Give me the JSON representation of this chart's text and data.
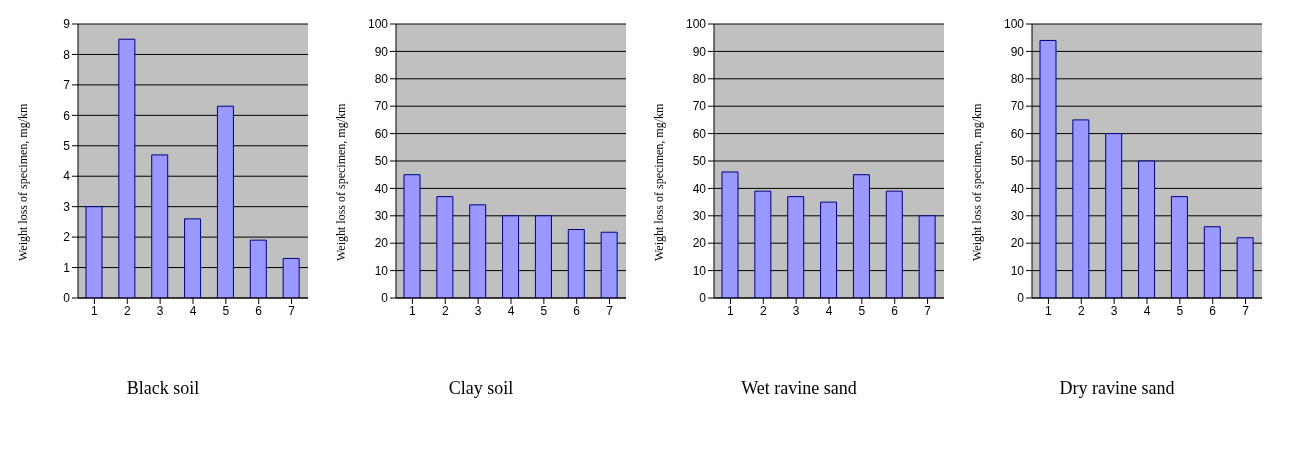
{
  "chart_data": [
    {
      "type": "bar",
      "title": "Black soil",
      "ylabel": "Weight loss of specimen, mg/km",
      "categories": [
        "1",
        "2",
        "3",
        "4",
        "5",
        "6",
        "7"
      ],
      "values": [
        3,
        8.5,
        4.7,
        2.6,
        6.3,
        1.9,
        1.3
      ],
      "color": "#9999ff",
      "ylim": [
        0,
        9
      ],
      "yticks": [
        0,
        1,
        2,
        3,
        4,
        5,
        6,
        7,
        8,
        9
      ],
      "grid": "y"
    },
    {
      "type": "bar",
      "title": "Clay soil",
      "ylabel": "Weight loss of specimen, mg/km",
      "categories": [
        "1",
        "2",
        "3",
        "4",
        "5",
        "6",
        "7"
      ],
      "values": [
        45,
        37,
        34,
        30,
        30,
        25,
        24
      ],
      "color": "#9999ff",
      "ylim": [
        0,
        100
      ],
      "yticks": [
        0,
        10,
        20,
        30,
        40,
        50,
        60,
        70,
        80,
        90,
        100
      ],
      "grid": "y"
    },
    {
      "type": "bar",
      "title": "Wet ravine sand",
      "ylabel": "Weight loss of specimen, mg/km",
      "categories": [
        "1",
        "2",
        "3",
        "4",
        "5",
        "6",
        "7"
      ],
      "values": [
        46,
        39,
        37,
        35,
        45,
        39,
        30
      ],
      "color": "#9999ff",
      "ylim": [
        0,
        100
      ],
      "yticks": [
        0,
        10,
        20,
        30,
        40,
        50,
        60,
        70,
        80,
        90,
        100
      ],
      "grid": "y"
    },
    {
      "type": "bar",
      "title": "Dry ravine sand",
      "ylabel": "Weight loss of specimen, mg/km",
      "categories": [
        "1",
        "2",
        "3",
        "4",
        "5",
        "6",
        "7"
      ],
      "values": [
        94,
        65,
        60,
        50,
        37,
        26,
        22
      ],
      "color": "#9999ff",
      "ylim": [
        0,
        100
      ],
      "yticks": [
        0,
        10,
        20,
        30,
        40,
        50,
        60,
        70,
        80,
        90,
        100
      ],
      "grid": "y"
    }
  ]
}
